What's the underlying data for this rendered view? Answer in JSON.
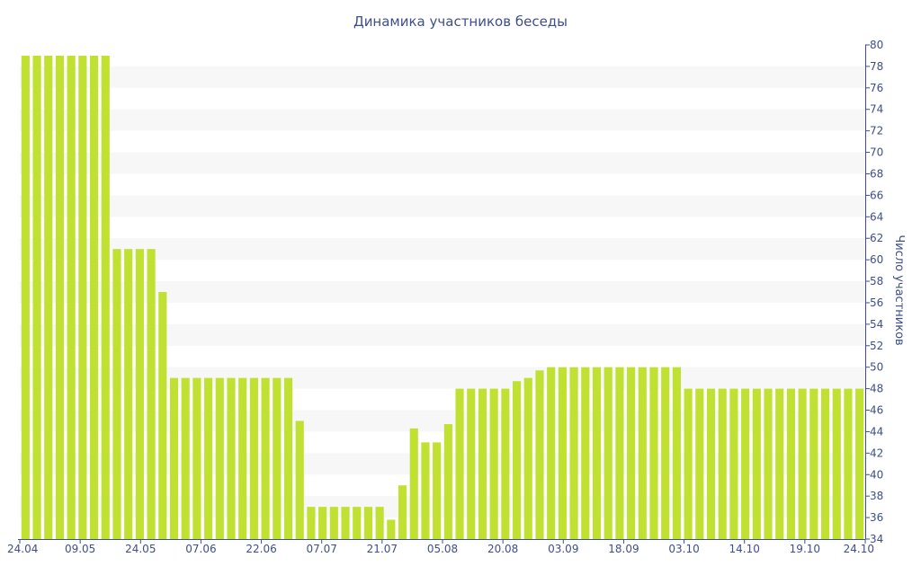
{
  "chart_data": {
    "type": "bar",
    "title": "Динамика участников беседы",
    "ylabel": "Число участников",
    "xlabel": "",
    "ylim": [
      34,
      80
    ],
    "y_ticks": [
      34,
      36,
      38,
      40,
      42,
      44,
      46,
      48,
      50,
      52,
      54,
      56,
      58,
      60,
      62,
      64,
      66,
      68,
      70,
      72,
      74,
      76,
      78,
      80
    ],
    "x_tick_labels": [
      "24.04",
      "09.05",
      "24.05",
      "07.06",
      "22.06",
      "07.07",
      "21.07",
      "05.08",
      "20.08",
      "03.09",
      "18.09",
      "03.10",
      "14.10",
      "19.10",
      "24.10"
    ],
    "values": [
      79,
      79,
      79,
      79,
      79,
      79,
      79,
      79,
      61,
      61,
      61,
      61,
      57,
      49,
      49,
      49,
      49,
      49,
      49,
      49,
      49,
      49,
      49,
      49,
      45,
      37,
      37,
      37,
      37,
      37,
      37,
      37,
      35.8,
      39,
      44.3,
      43,
      43,
      44.7,
      48,
      48,
      48,
      48,
      48,
      48.7,
      49,
      49.7,
      50,
      50,
      50,
      50,
      50,
      50,
      50,
      50,
      50,
      50,
      50,
      50,
      48,
      48,
      48,
      48,
      48,
      48,
      48,
      48,
      48,
      48,
      48,
      48,
      48,
      48,
      48,
      48
    ],
    "bar_color": "#c0e132",
    "band_color": "#f7f7f7",
    "axis_color": "#3e4f8a",
    "grid": "alternating-bands",
    "y_axis_side": "right"
  }
}
